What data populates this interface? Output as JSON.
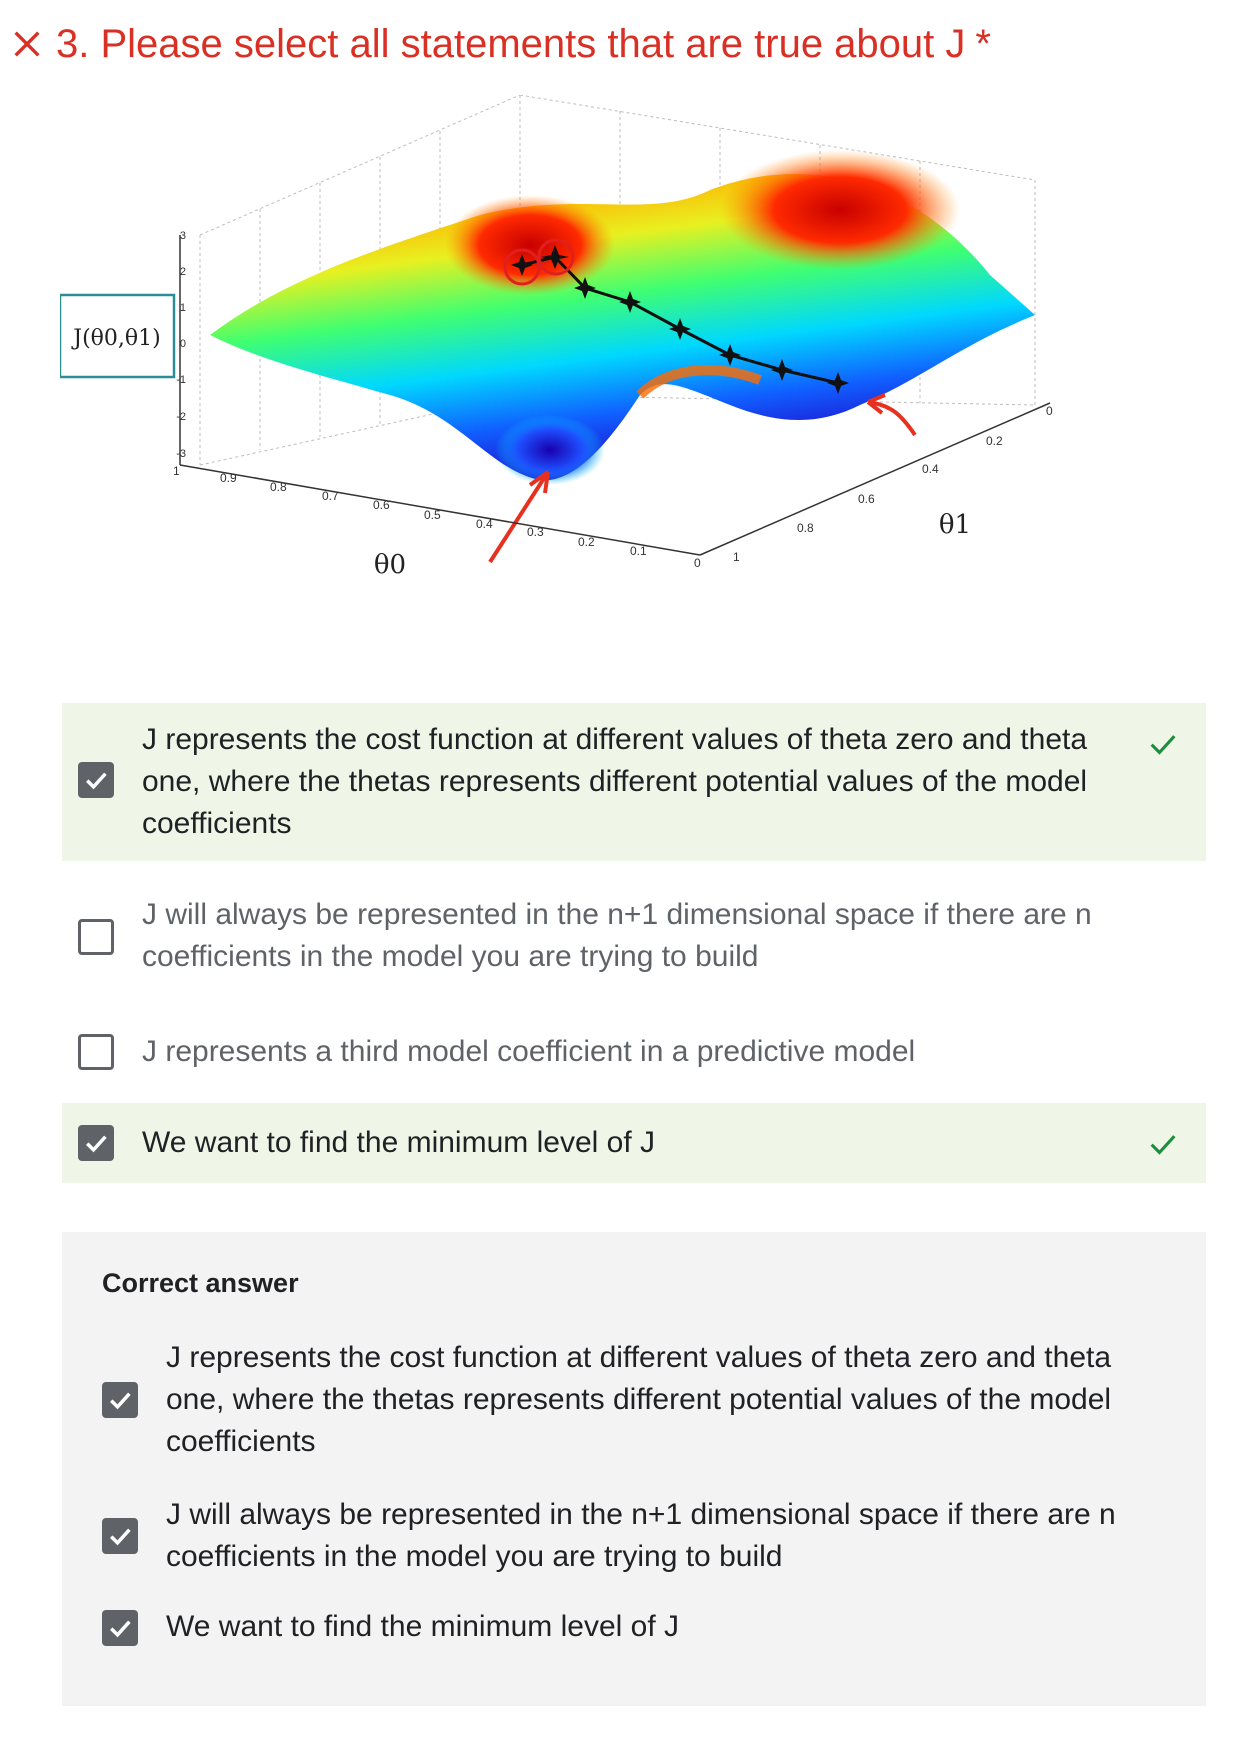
{
  "question": {
    "number_title": "3. Please select all statements that are true about J",
    "required_marker": "*",
    "status_icon": "x-icon",
    "status_color": "#d93025"
  },
  "figure": {
    "z_label": "J(θ0,θ1)",
    "z_ticks": [
      "3",
      "2",
      "1",
      "0",
      "-1",
      "-2",
      "-3"
    ],
    "theta0_label": "θ0",
    "theta0_ticks": [
      "1",
      "0.9",
      "0.8",
      "0.7",
      "0.6",
      "0.5",
      "0.4",
      "0.3",
      "0.2",
      "0.1",
      "0"
    ],
    "theta1_label": "θ1",
    "theta1_ticks": [
      "1",
      "0.8",
      "0.6",
      "0.4",
      "0.2",
      "0"
    ]
  },
  "options": [
    {
      "text": "J represents the cost function at different values of theta zero and theta one, where the thetas represents different potential values of the model coefficients",
      "checked": true,
      "correct": true
    },
    {
      "text": "J will always be represented in the n+1 dimensional space if there are n coefficients in the model you are trying to build",
      "checked": false,
      "correct": false
    },
    {
      "text": "J represents a third model coefficient in a predictive model",
      "checked": false,
      "correct": false
    },
    {
      "text": "We want to find the minimum level of J",
      "checked": true,
      "correct": true
    }
  ],
  "correct_answer": {
    "title": "Correct answer",
    "items": [
      "J represents the cost function at different values of theta zero and theta one, where the thetas represents different potential values of the model coefficients",
      "J will always be represented in the n+1 dimensional space if there are n coefficients in the model you are trying to build",
      "We want to find the minimum level of J"
    ]
  },
  "colors": {
    "correct_bg": "#eff6e7",
    "check_green": "#1e8e3e",
    "checkbox_gray": "#5f6368",
    "answer_bg": "#f3f3f3"
  }
}
